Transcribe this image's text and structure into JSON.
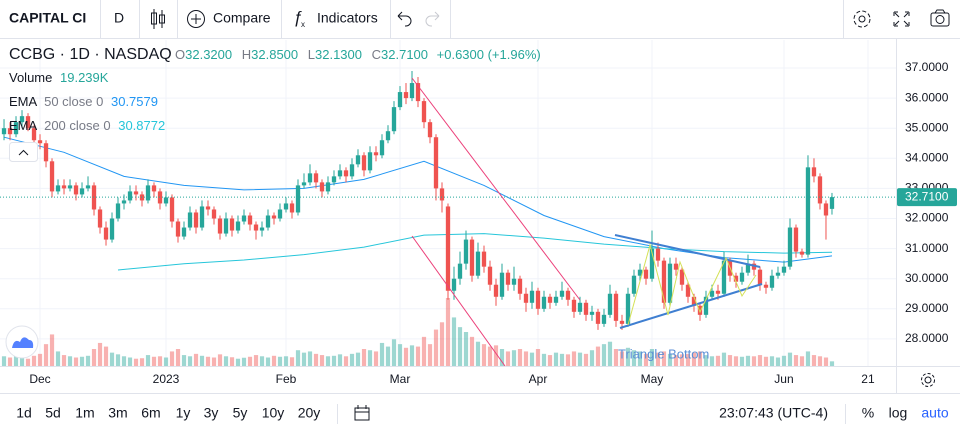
{
  "toolbar": {
    "symbol": "CAPITAL CI",
    "interval": "D",
    "compare": "Compare",
    "indicators": "Indicators"
  },
  "legend": {
    "symbol": "CCBG · 1D · NASDAQ",
    "ohlc": [
      {
        "key": "O",
        "value": "32.3200"
      },
      {
        "key": "H",
        "value": "32.8500"
      },
      {
        "key": "L",
        "value": "32.1300"
      },
      {
        "key": "C",
        "value": "32.7100"
      }
    ],
    "change": "+0.6300 (+1.96%)",
    "volume": {
      "name": "Volume",
      "value": "19.239K"
    },
    "indicators": [
      {
        "name": "EMA",
        "params": "50 close 0",
        "value": "30.7579"
      },
      {
        "name": "EMA",
        "params": "200 close 0",
        "value": "30.8772"
      }
    ]
  },
  "chart_data": {
    "type": "candlestick",
    "xlim": [
      -0.67,
      148.67
    ],
    "xticks": [
      {
        "value": 6,
        "label": "Dec"
      },
      {
        "value": 27,
        "label": "2023"
      },
      {
        "value": 47,
        "label": "Feb"
      },
      {
        "value": 66,
        "label": "Mar"
      },
      {
        "value": 89,
        "label": "Apr"
      },
      {
        "value": 108,
        "label": "May"
      },
      {
        "value": 130,
        "label": "Jun"
      },
      {
        "value": 144,
        "label": "21"
      }
    ],
    "ylim": [
      27.1,
      37.93
    ],
    "yticks": [
      {
        "value": 37,
        "label": "37.0000"
      },
      {
        "value": 36,
        "label": "36.0000"
      },
      {
        "value": 35,
        "label": "35.0000"
      },
      {
        "value": 34,
        "label": "34.0000"
      },
      {
        "value": 33,
        "label": "33.0000"
      },
      {
        "value": 32,
        "label": "32.0000"
      },
      {
        "value": 31,
        "label": "31.0000"
      },
      {
        "value": 30,
        "label": "30.0000"
      },
      {
        "value": 29,
        "label": "29.0000"
      },
      {
        "value": 28,
        "label": "28.0000"
      }
    ],
    "grid": true,
    "colors": {
      "up": "#26a69a",
      "down": "#ef5350"
    },
    "ohlc": [
      [
        34.8,
        35.3,
        34.6,
        35.0
      ],
      [
        35.0,
        35.2,
        34.6,
        34.8
      ],
      [
        34.8,
        35.4,
        34.7,
        35.2
      ],
      [
        35.2,
        35.6,
        35.0,
        35.4
      ],
      [
        35.4,
        35.5,
        34.9,
        35.0
      ],
      [
        35.0,
        35.1,
        34.4,
        34.6
      ],
      [
        34.6,
        34.8,
        34.3,
        34.5
      ],
      [
        34.5,
        34.6,
        33.7,
        33.9
      ],
      [
        33.9,
        34.0,
        32.7,
        32.9
      ],
      [
        32.9,
        33.3,
        32.8,
        33.1
      ],
      [
        33.1,
        33.3,
        32.8,
        33.0
      ],
      [
        33.0,
        33.3,
        32.9,
        33.1
      ],
      [
        33.1,
        33.2,
        32.6,
        32.8
      ],
      [
        32.8,
        33.2,
        32.7,
        33.0
      ],
      [
        33.0,
        33.4,
        32.9,
        33.1
      ],
      [
        33.1,
        33.2,
        32.1,
        32.3
      ],
      [
        32.3,
        32.4,
        31.5,
        31.7
      ],
      [
        31.7,
        31.9,
        31.1,
        31.3
      ],
      [
        31.3,
        32.2,
        31.2,
        32.0
      ],
      [
        32.0,
        32.7,
        31.9,
        32.5
      ],
      [
        32.5,
        32.8,
        32.3,
        32.6
      ],
      [
        32.6,
        33.1,
        32.5,
        32.9
      ],
      [
        32.9,
        33.1,
        32.6,
        32.8
      ],
      [
        32.8,
        32.9,
        32.4,
        32.6
      ],
      [
        32.6,
        33.3,
        32.5,
        33.1
      ],
      [
        33.1,
        33.2,
        32.7,
        32.9
      ],
      [
        32.9,
        33.0,
        32.3,
        32.5
      ],
      [
        32.5,
        32.9,
        32.4,
        32.7
      ],
      [
        32.7,
        32.8,
        31.7,
        31.9
      ],
      [
        31.9,
        32.0,
        31.2,
        31.4
      ],
      [
        31.4,
        31.9,
        31.3,
        31.7
      ],
      [
        31.7,
        32.4,
        31.6,
        32.2
      ],
      [
        32.2,
        32.3,
        31.5,
        31.7
      ],
      [
        31.7,
        32.6,
        31.6,
        32.4
      ],
      [
        32.4,
        32.6,
        32.1,
        32.3
      ],
      [
        32.3,
        32.4,
        31.8,
        32.0
      ],
      [
        32.0,
        32.1,
        31.3,
        31.5
      ],
      [
        31.5,
        32.2,
        31.4,
        32.0
      ],
      [
        32.0,
        32.1,
        31.4,
        31.6
      ],
      [
        31.6,
        32.1,
        31.5,
        31.9
      ],
      [
        31.9,
        32.3,
        31.8,
        32.1
      ],
      [
        32.1,
        32.2,
        31.6,
        31.8
      ],
      [
        31.8,
        31.9,
        31.3,
        31.6
      ],
      [
        31.6,
        31.9,
        31.4,
        31.7
      ],
      [
        31.7,
        32.3,
        31.6,
        32.1
      ],
      [
        32.1,
        32.2,
        31.8,
        32.0
      ],
      [
        32.0,
        32.5,
        31.9,
        32.3
      ],
      [
        32.3,
        32.7,
        32.2,
        32.5
      ],
      [
        32.5,
        32.6,
        32.0,
        32.2
      ],
      [
        32.2,
        33.3,
        32.1,
        33.1
      ],
      [
        33.1,
        33.5,
        33.0,
        33.2
      ],
      [
        33.2,
        33.8,
        33.1,
        33.5
      ],
      [
        33.5,
        33.6,
        33.0,
        33.2
      ],
      [
        33.2,
        33.3,
        32.7,
        32.9
      ],
      [
        32.9,
        33.4,
        32.8,
        33.2
      ],
      [
        33.2,
        33.6,
        33.1,
        33.4
      ],
      [
        33.4,
        33.8,
        33.3,
        33.6
      ],
      [
        33.6,
        33.7,
        33.2,
        33.4
      ],
      [
        33.4,
        34.0,
        33.3,
        33.8
      ],
      [
        33.8,
        34.3,
        33.7,
        34.1
      ],
      [
        34.1,
        34.2,
        33.4,
        33.6
      ],
      [
        33.6,
        34.4,
        33.5,
        34.2
      ],
      [
        34.2,
        34.4,
        33.9,
        34.1
      ],
      [
        34.1,
        34.8,
        34.0,
        34.6
      ],
      [
        34.6,
        35.1,
        34.5,
        34.9
      ],
      [
        34.9,
        35.9,
        34.8,
        35.7
      ],
      [
        35.7,
        36.4,
        35.6,
        36.2
      ],
      [
        36.2,
        36.5,
        35.8,
        36.0
      ],
      [
        36.0,
        36.9,
        35.9,
        36.5
      ],
      [
        36.5,
        36.7,
        35.7,
        35.9
      ],
      [
        35.9,
        36.0,
        35.0,
        35.2
      ],
      [
        35.2,
        35.3,
        34.5,
        34.7
      ],
      [
        34.7,
        34.8,
        32.6,
        33.0
      ],
      [
        33.0,
        33.2,
        32.2,
        32.6
      ],
      [
        32.4,
        32.5,
        29.3,
        29.6
      ],
      [
        29.6,
        30.4,
        29.3,
        30.0
      ],
      [
        30.0,
        30.9,
        29.8,
        30.5
      ],
      [
        30.5,
        31.6,
        30.3,
        31.3
      ],
      [
        31.3,
        31.4,
        29.9,
        30.1
      ],
      [
        30.1,
        31.2,
        30.0,
        30.9
      ],
      [
        30.9,
        31.1,
        30.2,
        30.4
      ],
      [
        30.4,
        30.6,
        29.6,
        29.8
      ],
      [
        29.8,
        30.0,
        29.1,
        29.4
      ],
      [
        29.4,
        30.5,
        29.3,
        30.2
      ],
      [
        30.2,
        30.3,
        29.6,
        29.8
      ],
      [
        29.8,
        30.4,
        29.6,
        30.0
      ],
      [
        30.0,
        30.1,
        29.3,
        29.5
      ],
      [
        29.5,
        29.7,
        28.9,
        29.2
      ],
      [
        29.2,
        29.9,
        29.0,
        29.6
      ],
      [
        29.6,
        29.7,
        28.8,
        29.0
      ],
      [
        29.0,
        29.6,
        28.9,
        29.4
      ],
      [
        29.4,
        29.5,
        29.0,
        29.2
      ],
      [
        29.2,
        29.6,
        29.1,
        29.4
      ],
      [
        29.4,
        29.9,
        29.3,
        29.6
      ],
      [
        29.6,
        29.7,
        29.1,
        29.3
      ],
      [
        29.3,
        29.4,
        28.7,
        28.9
      ],
      [
        28.9,
        29.4,
        28.8,
        29.2
      ],
      [
        29.2,
        29.3,
        28.6,
        28.8
      ],
      [
        28.8,
        29.1,
        28.6,
        28.9
      ],
      [
        28.9,
        29.0,
        28.3,
        28.5
      ],
      [
        28.5,
        29.0,
        28.4,
        28.8
      ],
      [
        28.8,
        29.8,
        28.7,
        29.5
      ],
      [
        29.5,
        29.6,
        28.4,
        28.6
      ],
      [
        28.6,
        28.8,
        28.3,
        28.5
      ],
      [
        28.5,
        29.7,
        28.4,
        29.5
      ],
      [
        29.5,
        30.3,
        29.4,
        30.1
      ],
      [
        30.1,
        30.5,
        29.9,
        30.3
      ],
      [
        30.3,
        30.4,
        29.8,
        30.0
      ],
      [
        30.0,
        31.6,
        29.9,
        31.0
      ],
      [
        31.0,
        31.2,
        30.4,
        30.6
      ],
      [
        30.6,
        30.7,
        29.0,
        29.2
      ],
      [
        29.2,
        30.7,
        29.1,
        30.5
      ],
      [
        30.5,
        30.7,
        30.1,
        30.3
      ],
      [
        30.3,
        30.4,
        29.6,
        29.8
      ],
      [
        29.8,
        29.9,
        29.2,
        29.4
      ],
      [
        29.4,
        29.5,
        28.9,
        29.1
      ],
      [
        29.1,
        29.2,
        28.6,
        28.8
      ],
      [
        28.8,
        29.6,
        28.7,
        29.4
      ],
      [
        29.4,
        29.8,
        29.3,
        29.6
      ],
      [
        29.6,
        29.8,
        29.3,
        29.5
      ],
      [
        29.5,
        30.9,
        29.4,
        30.6
      ],
      [
        30.6,
        30.7,
        29.9,
        30.1
      ],
      [
        30.1,
        30.2,
        29.7,
        29.9
      ],
      [
        29.9,
        30.4,
        29.8,
        30.2
      ],
      [
        30.2,
        30.8,
        30.1,
        30.5
      ],
      [
        30.5,
        30.6,
        30.1,
        30.3
      ],
      [
        30.3,
        30.4,
        29.6,
        29.8
      ],
      [
        29.8,
        29.9,
        29.5,
        29.7
      ],
      [
        29.7,
        30.3,
        29.6,
        30.1
      ],
      [
        30.1,
        30.4,
        30.0,
        30.2
      ],
      [
        30.2,
        30.6,
        30.1,
        30.4
      ],
      [
        30.4,
        32.0,
        30.3,
        31.7
      ],
      [
        31.7,
        31.8,
        30.7,
        30.9
      ],
      [
        30.9,
        31.0,
        30.7,
        30.8
      ],
      [
        30.8,
        34.1,
        30.7,
        33.7
      ],
      [
        33.7,
        34.0,
        33.2,
        33.4
      ],
      [
        33.4,
        33.5,
        32.3,
        32.5
      ],
      [
        32.5,
        32.6,
        31.3,
        32.1
      ],
      [
        32.32,
        32.85,
        32.13,
        32.71
      ]
    ],
    "volume": [
      40000,
      35000,
      45000,
      38000,
      30000,
      42000,
      50000,
      90000,
      130000,
      60000,
      45000,
      40000,
      35000,
      38000,
      42000,
      70000,
      95000,
      80000,
      55000,
      48000,
      40000,
      35000,
      30000,
      32000,
      45000,
      38000,
      40000,
      35000,
      60000,
      70000,
      45000,
      40000,
      50000,
      42000,
      38000,
      35000,
      48000,
      40000,
      36000,
      30000,
      34000,
      38000,
      45000,
      40000,
      35000,
      42000,
      38000,
      40000,
      36000,
      65000,
      55000,
      60000,
      50000,
      45000,
      40000,
      42000,
      48000,
      40000,
      50000,
      55000,
      70000,
      65000,
      60000,
      95000,
      80000,
      110000,
      90000,
      75000,
      85000,
      80000,
      120000,
      90000,
      150000,
      180000,
      280000,
      200000,
      160000,
      140000,
      120000,
      100000,
      90000,
      80000,
      85000,
      70000,
      60000,
      65000,
      70000,
      60000,
      55000,
      70000,
      50000,
      45000,
      55000,
      50000,
      48000,
      60000,
      55000,
      50000,
      65000,
      80000,
      90000,
      100000,
      70000,
      60000,
      75000,
      65000,
      60000,
      50000,
      70000,
      55000,
      60000,
      50000,
      45000,
      48000,
      50000,
      55000,
      60000,
      45000,
      40000,
      42000,
      55000,
      45000,
      40000,
      38000,
      42000,
      40000,
      45000,
      38000,
      40000,
      35000,
      42000,
      55000,
      45000,
      40000,
      60000,
      45000,
      40000,
      35000,
      19239
    ],
    "ema": [
      {
        "color": "#2196f3",
        "x": [
          0,
          10,
          20,
          30,
          40,
          50,
          60,
          70,
          80,
          90,
          100,
          110,
          120,
          130,
          138
        ],
        "values": [
          34.7,
          34.2,
          33.4,
          33.1,
          32.95,
          33.0,
          33.3,
          33.9,
          33.1,
          32.1,
          31.4,
          31.0,
          30.7,
          30.55,
          30.7579
        ]
      },
      {
        "color": "#26c6da",
        "x": [
          19,
          30,
          40,
          50,
          60,
          70,
          80,
          90,
          100,
          110,
          120,
          130,
          138
        ],
        "values": [
          30.29,
          30.5,
          30.62,
          30.8,
          31.05,
          31.45,
          31.5,
          31.35,
          31.15,
          31.0,
          30.9,
          30.85,
          30.8772
        ]
      }
    ],
    "last_price_label": "32.7100",
    "annotation": "Triangle Bottom"
  },
  "bottom_bar": {
    "ranges": [
      "1d",
      "5d",
      "1m",
      "3m",
      "6m",
      "1y",
      "3y",
      "5y",
      "10y",
      "20y"
    ],
    "time": "23:07:43 (UTC-4)",
    "percent": "%",
    "log": "log",
    "auto": "auto"
  }
}
